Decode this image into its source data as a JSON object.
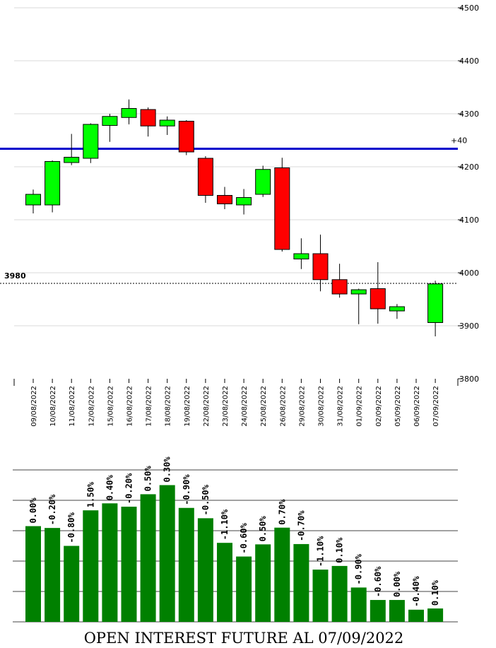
{
  "chart_data": [
    {
      "type": "candlestick",
      "categories": [
        "09/08/2022",
        "10/08/2022",
        "11/08/2022",
        "12/08/2022",
        "15/08/2022",
        "16/08/2022",
        "17/08/2022",
        "18/08/2022",
        "19/08/2022",
        "22/08/2022",
        "23/08/2022",
        "24/08/2022",
        "25/08/2022",
        "26/08/2022",
        "29/08/2022",
        "30/08/2022",
        "31/08/2022",
        "01/09/2022",
        "02/09/2022",
        "05/09/2022",
        "06/09/2022",
        "07/09/2022"
      ],
      "candles": [
        {
          "open": 4128,
          "high": 4157,
          "low": 4112,
          "close": 4148
        },
        {
          "open": 4128,
          "high": 4212,
          "low": 4114,
          "close": 4210
        },
        {
          "open": 4208,
          "high": 4262,
          "low": 4203,
          "close": 4218
        },
        {
          "open": 4216,
          "high": 4282,
          "low": 4207,
          "close": 4280
        },
        {
          "open": 4278,
          "high": 4300,
          "low": 4247,
          "close": 4295
        },
        {
          "open": 4293,
          "high": 4327,
          "low": 4280,
          "close": 4310
        },
        {
          "open": 4308,
          "high": 4312,
          "low": 4257,
          "close": 4277
        },
        {
          "open": 4277,
          "high": 4295,
          "low": 4260,
          "close": 4288
        },
        {
          "open": 4286,
          "high": 4288,
          "low": 4222,
          "close": 4228
        },
        {
          "open": 4216,
          "high": 4220,
          "low": 4132,
          "close": 4146
        },
        {
          "open": 4146,
          "high": 4162,
          "low": 4120,
          "close": 4130
        },
        {
          "open": 4128,
          "high": 4158,
          "low": 4110,
          "close": 4142
        },
        {
          "open": 4148,
          "high": 4202,
          "low": 4143,
          "close": 4195
        },
        {
          "open": 4198,
          "high": 4217,
          "low": 4040,
          "close": 4044
        },
        {
          "open": 4026,
          "high": 4065,
          "low": 4007,
          "close": 4036
        },
        {
          "open": 4036,
          "high": 4072,
          "low": 3965,
          "close": 3987
        },
        {
          "open": 3987,
          "high": 4017,
          "low": 3953,
          "close": 3960
        },
        {
          "open": 3960,
          "high": 3970,
          "low": 3903,
          "close": 3968
        },
        {
          "open": 3970,
          "high": 4020,
          "low": 3904,
          "close": 3932
        },
        {
          "open": 3928,
          "high": 3941,
          "low": 3913,
          "close": 3936
        },
        null,
        {
          "open": 3906,
          "high": 3985,
          "low": 3880,
          "close": 3979
        }
      ],
      "ylim": [
        3800,
        4500
      ],
      "yticks": [
        3800,
        3900,
        4000,
        4100,
        4200,
        4300,
        4400,
        4500
      ],
      "grid": true,
      "reference_line": {
        "value": 4234,
        "label": "+40",
        "color": "#0000cc"
      },
      "last_price": {
        "value": 3980,
        "label": "3980"
      },
      "up_color": "#00ff00",
      "down_color": "#ff0000"
    },
    {
      "type": "bar",
      "values": [
        3.15,
        3.09,
        2.5,
        3.67,
        3.9,
        3.79,
        4.2,
        4.5,
        3.75,
        3.41,
        2.6,
        2.15,
        2.55,
        3.1,
        2.56,
        1.72,
        1.84,
        1.13,
        0.72,
        0.72,
        0.4,
        0.44
      ],
      "labels": [
        "0.00%",
        "-0.20%",
        "-0.80%",
        "1.50%",
        "0.40%",
        "-0.20%",
        "0.50%",
        "0.30%",
        "-0.90%",
        "-0.50%",
        "-1.10%",
        "-0.60%",
        "0.50%",
        "0.70%",
        "-0.70%",
        "-1.10%",
        "0.10%",
        "-0.90%",
        "-0.60%",
        "0.00%",
        "-0.40%",
        "0.10%"
      ],
      "ylim": [
        0,
        5
      ],
      "grid": true,
      "bar_color": "#008000",
      "title": "OPEN INTEREST FUTURE AL 07/09/2022"
    }
  ]
}
